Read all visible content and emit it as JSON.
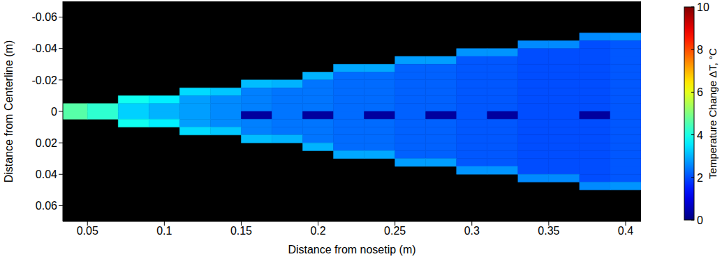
{
  "chart_data": {
    "type": "heatmap",
    "x_label": "Distance from nosetip (m)",
    "y_label": "Distance from Centerline (m)",
    "xlim": [
      0.034,
      0.41
    ],
    "ylim": [
      -0.07,
      0.07
    ],
    "xticks": [
      0.05,
      0.1,
      0.15,
      0.2,
      0.25,
      0.3,
      0.35,
      0.4
    ],
    "yticks": [
      -0.06,
      -0.04,
      -0.02,
      0,
      0.02,
      0.04,
      0.06
    ],
    "x_edges": [
      0.03,
      0.05,
      0.07,
      0.09,
      0.11,
      0.13,
      0.15,
      0.17,
      0.19,
      0.21,
      0.23,
      0.25,
      0.27,
      0.29,
      0.31,
      0.33,
      0.35,
      0.37,
      0.39,
      0.41
    ],
    "y_edges": [
      -0.05,
      -0.045,
      -0.04,
      -0.035,
      -0.03,
      -0.025,
      -0.02,
      -0.015,
      -0.01,
      -0.005,
      0,
      0.005,
      0.01,
      0.015,
      0.02,
      0.025,
      0.03,
      0.035,
      0.04,
      0.045,
      0.05
    ],
    "cells": [
      [
        null,
        null,
        null,
        null,
        null,
        null,
        null,
        null,
        null,
        null,
        null,
        null,
        null,
        null,
        null,
        null,
        null,
        2.6,
        2.7
      ],
      [
        null,
        null,
        null,
        null,
        null,
        null,
        null,
        null,
        null,
        null,
        null,
        null,
        null,
        null,
        null,
        2.6,
        2.6,
        2.0,
        2.1
      ],
      [
        null,
        null,
        null,
        null,
        null,
        null,
        null,
        null,
        null,
        null,
        null,
        null,
        null,
        2.7,
        2.7,
        2.0,
        2.0,
        2.0,
        2.1
      ],
      [
        null,
        null,
        null,
        null,
        null,
        null,
        null,
        null,
        null,
        null,
        null,
        2.8,
        2.8,
        2.1,
        2.1,
        2.0,
        2.0,
        2.0,
        2.1
      ],
      [
        null,
        null,
        null,
        null,
        null,
        null,
        null,
        null,
        null,
        2.9,
        2.9,
        2.2,
        2.2,
        2.1,
        2.1,
        2.0,
        2.0,
        2.0,
        2.1
      ],
      [
        null,
        null,
        null,
        null,
        null,
        null,
        null,
        null,
        3.0,
        2.3,
        2.3,
        2.2,
        2.2,
        2.1,
        2.1,
        2.0,
        2.0,
        2.0,
        2.1
      ],
      [
        null,
        null,
        null,
        null,
        null,
        null,
        3.1,
        3.0,
        2.4,
        2.3,
        2.3,
        2.2,
        2.2,
        2.1,
        2.1,
        2.0,
        2.0,
        2.0,
        2.1
      ],
      [
        null,
        null,
        null,
        null,
        3.4,
        3.2,
        2.5,
        2.4,
        2.4,
        2.3,
        2.3,
        2.2,
        2.2,
        2.1,
        2.1,
        2.0,
        2.0,
        2.0,
        2.1
      ],
      [
        null,
        null,
        3.9,
        3.6,
        2.8,
        2.6,
        2.5,
        2.4,
        2.4,
        2.3,
        2.3,
        2.2,
        2.2,
        2.1,
        2.1,
        2.0,
        2.0,
        2.0,
        2.1
      ],
      [
        4.6,
        4.2,
        3.3,
        3.0,
        2.8,
        2.6,
        2.5,
        2.4,
        2.4,
        2.3,
        2.3,
        2.2,
        2.2,
        2.1,
        2.1,
        2.0,
        2.0,
        2.0,
        2.1
      ],
      [
        4.6,
        4.2,
        3.3,
        3.0,
        2.8,
        2.6,
        0.3,
        2.4,
        0.3,
        2.3,
        0.3,
        2.2,
        0.3,
        2.1,
        0.3,
        2.0,
        2.0,
        0.3,
        2.1
      ],
      [
        null,
        null,
        3.9,
        3.6,
        2.8,
        2.6,
        2.5,
        2.4,
        2.4,
        2.3,
        2.3,
        2.2,
        2.2,
        2.1,
        2.1,
        2.0,
        2.0,
        2.0,
        2.1
      ],
      [
        null,
        null,
        null,
        null,
        3.4,
        3.2,
        2.5,
        2.4,
        2.4,
        2.3,
        2.3,
        2.2,
        2.2,
        2.1,
        2.1,
        2.0,
        2.0,
        2.0,
        2.1
      ],
      [
        null,
        null,
        null,
        null,
        null,
        null,
        3.1,
        3.0,
        2.4,
        2.3,
        2.3,
        2.2,
        2.2,
        2.1,
        2.1,
        2.0,
        2.0,
        2.0,
        2.1
      ],
      [
        null,
        null,
        null,
        null,
        null,
        null,
        null,
        null,
        3.0,
        2.3,
        2.3,
        2.2,
        2.2,
        2.1,
        2.1,
        2.0,
        2.0,
        2.0,
        2.1
      ],
      [
        null,
        null,
        null,
        null,
        null,
        null,
        null,
        null,
        null,
        2.9,
        2.9,
        2.2,
        2.2,
        2.1,
        2.1,
        2.0,
        2.0,
        2.0,
        2.1
      ],
      [
        null,
        null,
        null,
        null,
        null,
        null,
        null,
        null,
        null,
        null,
        null,
        2.8,
        2.8,
        2.1,
        2.1,
        2.0,
        2.0,
        2.0,
        2.1
      ],
      [
        null,
        null,
        null,
        null,
        null,
        null,
        null,
        null,
        null,
        null,
        null,
        null,
        null,
        2.7,
        2.7,
        2.0,
        2.0,
        2.0,
        2.1
      ],
      [
        null,
        null,
        null,
        null,
        null,
        null,
        null,
        null,
        null,
        null,
        null,
        null,
        null,
        null,
        null,
        2.6,
        2.6,
        2.0,
        2.1
      ],
      [
        null,
        null,
        null,
        null,
        null,
        null,
        null,
        null,
        null,
        null,
        null,
        null,
        null,
        null,
        null,
        null,
        null,
        2.6,
        2.7
      ]
    ],
    "colorbar": {
      "label": "Temperature Change ΔT, °C",
      "range": [
        0,
        10
      ],
      "ticks": [
        0,
        2,
        4,
        6,
        8,
        10
      ]
    }
  }
}
